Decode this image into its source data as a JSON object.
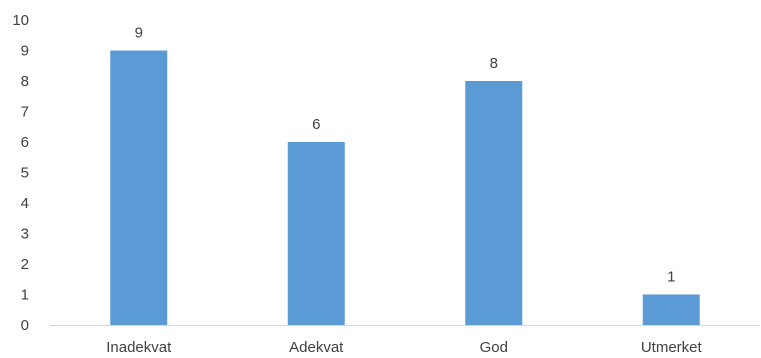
{
  "chart_data": {
    "type": "bar",
    "categories": [
      "Inadekvat",
      "Adekvat",
      "God",
      "Utmerket"
    ],
    "values": [
      9,
      6,
      8,
      1
    ],
    "data_labels": [
      "9",
      "6",
      "8",
      "1"
    ],
    "y_ticks": [
      "0",
      "1",
      "2",
      "3",
      "4",
      "5",
      "6",
      "7",
      "8",
      "9",
      "10"
    ],
    "ylim": [
      0,
      10
    ],
    "grid": false,
    "legend": "none",
    "bar_color": "#5b9bd5",
    "axis_color": "#d9d9d9",
    "text_color": "#404040"
  }
}
